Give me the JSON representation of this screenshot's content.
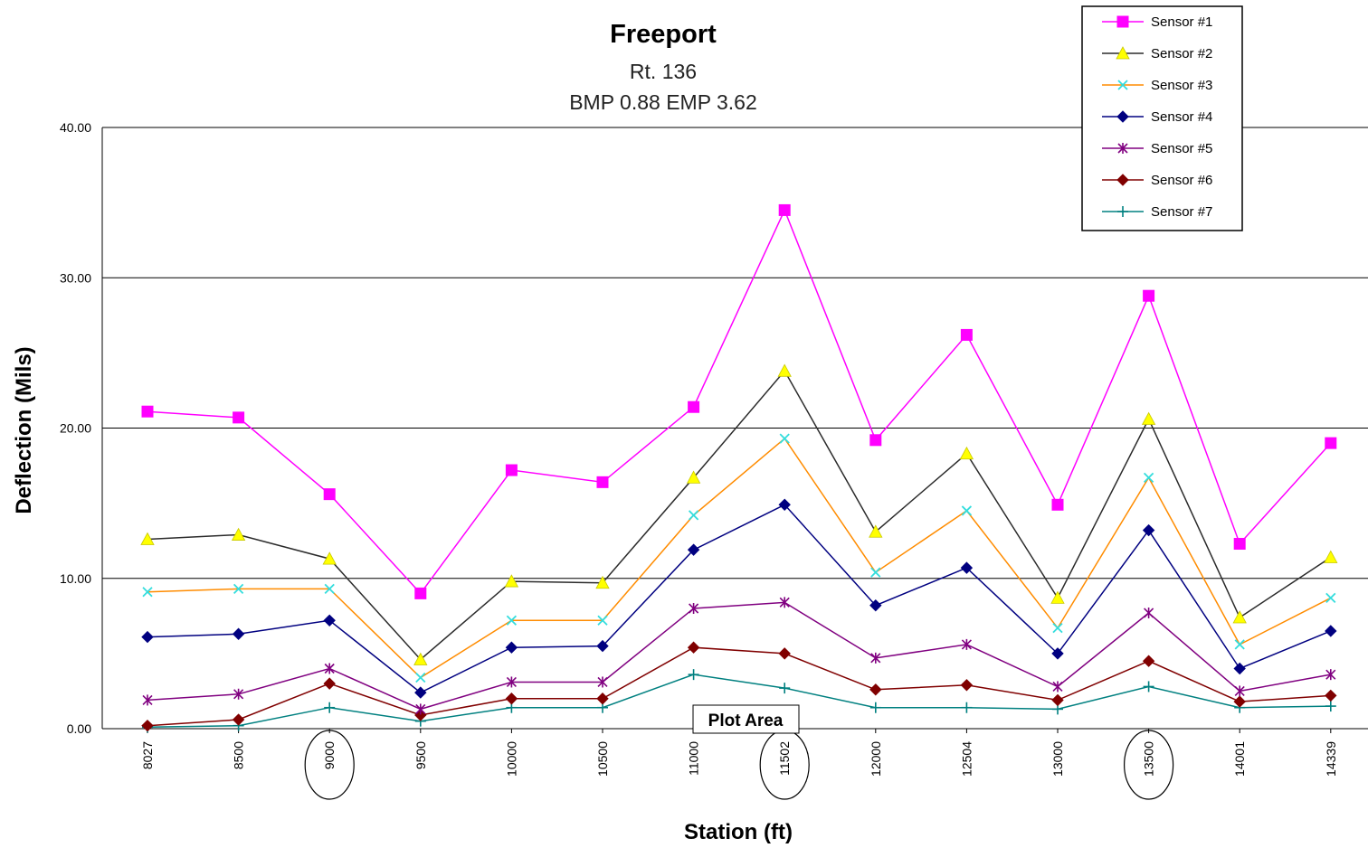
{
  "chart_data": {
    "type": "line",
    "title": "Freeport",
    "subtitle_lines": [
      "Rt. 136",
      "BMP 0.88  EMP 3.62"
    ],
    "xlabel": "Station (ft)",
    "ylabel": "Deflection (Mils)",
    "ylim": [
      0,
      40
    ],
    "yticks": [
      "0.00",
      "10.00",
      "20.00",
      "30.00",
      "40.00"
    ],
    "grid": "horizontal",
    "legend_position": "top-right",
    "categories": [
      "8027",
      "8500",
      "9000",
      "9500",
      "10000",
      "10500",
      "11000",
      "11502",
      "12000",
      "12504",
      "13000",
      "13500",
      "14001",
      "14339"
    ],
    "circled_categories": [
      "9000",
      "11502",
      "13500"
    ],
    "annotation": "Plot Area",
    "series": [
      {
        "name": "Sensor #1",
        "color": "#ff00ff",
        "line_color": "#ff00ff",
        "marker": "square",
        "values": [
          21.1,
          20.7,
          15.6,
          9.0,
          17.2,
          16.4,
          21.4,
          34.5,
          19.2,
          26.2,
          14.9,
          28.8,
          12.3,
          19.0
        ]
      },
      {
        "name": "Sensor #2",
        "color": "#ffff00",
        "line_color": "#2b2b2b",
        "marker": "triangle",
        "values": [
          12.6,
          12.9,
          11.3,
          4.6,
          9.8,
          9.7,
          16.7,
          23.8,
          13.1,
          18.3,
          8.7,
          20.6,
          7.4,
          11.4
        ]
      },
      {
        "name": "Sensor #3",
        "color": "#33dddd",
        "line_color": "#ff8c00",
        "marker": "x",
        "values": [
          9.1,
          9.3,
          9.3,
          3.4,
          7.2,
          7.2,
          14.2,
          19.3,
          10.4,
          14.5,
          6.7,
          16.7,
          5.6,
          8.7
        ]
      },
      {
        "name": "Sensor #4",
        "color": "#000080",
        "line_color": "#000080",
        "marker": "diamond",
        "values": [
          6.1,
          6.3,
          7.2,
          2.4,
          5.4,
          5.5,
          11.9,
          14.9,
          8.2,
          10.7,
          5.0,
          13.2,
          4.0,
          6.5
        ]
      },
      {
        "name": "Sensor #5",
        "color": "#800080",
        "line_color": "#800080",
        "marker": "star",
        "values": [
          1.9,
          2.3,
          4.0,
          1.3,
          3.1,
          3.1,
          8.0,
          8.4,
          4.7,
          5.6,
          2.8,
          7.7,
          2.5,
          3.6
        ]
      },
      {
        "name": "Sensor #6",
        "color": "#800000",
        "line_color": "#800000",
        "marker": "diamond",
        "values": [
          0.2,
          0.6,
          3.0,
          0.9,
          2.0,
          2.0,
          5.4,
          5.0,
          2.6,
          2.9,
          1.9,
          4.5,
          1.8,
          2.2
        ]
      },
      {
        "name": "Sensor #7",
        "color": "#008080",
        "line_color": "#008080",
        "marker": "plus",
        "values": [
          0.1,
          0.2,
          1.4,
          0.5,
          1.4,
          1.4,
          3.6,
          2.7,
          1.4,
          1.4,
          1.3,
          2.8,
          1.4,
          1.5
        ]
      }
    ]
  }
}
